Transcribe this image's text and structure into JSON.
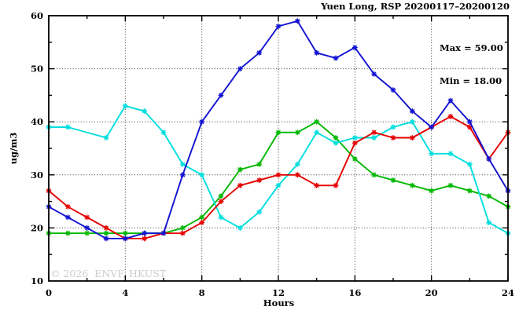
{
  "header": {
    "title": "Yuen Long, RSP 20200117–20200120"
  },
  "annotations": {
    "max": "Max = 59.00",
    "min": "Min = 18.00"
  },
  "watermark": "© 2026  ENVF, HKUST",
  "chart_data": {
    "type": "line",
    "title": "Yuen Long, RSP 20200117–20200120",
    "xlabel": "Hours",
    "ylabel": "ug/m3",
    "xlim": [
      0,
      24
    ],
    "ylim": [
      10,
      60
    ],
    "x_major_ticks": [
      0,
      4,
      8,
      12,
      16,
      20,
      24
    ],
    "x_minor_ticks": [
      2,
      6,
      10,
      14,
      18,
      22
    ],
    "y_major_ticks": [
      10,
      20,
      30,
      40,
      50,
      60
    ],
    "y_minor_ticks": [
      15,
      25,
      35,
      45,
      55
    ],
    "grid_x": [
      4,
      8,
      12,
      16,
      20
    ],
    "grid_y": [
      20,
      30,
      40,
      50
    ],
    "legend": "none",
    "marker": "asterisk",
    "max_value": 59.0,
    "min_value": 18.0,
    "x": [
      0,
      1,
      2,
      3,
      4,
      5,
      6,
      7,
      8,
      9,
      10,
      11,
      12,
      13,
      14,
      15,
      16,
      17,
      18,
      19,
      20,
      21,
      22,
      23,
      24
    ],
    "series": [
      {
        "name": "series-green",
        "color": "#00b800",
        "values": [
          19,
          19,
          19,
          19,
          19,
          19,
          19,
          20,
          22,
          26,
          31,
          32,
          38,
          38,
          40,
          37,
          33,
          30,
          29,
          28,
          27,
          28,
          27,
          26,
          24
        ]
      },
      {
        "name": "series-cyan",
        "color": "#00dede",
        "values": [
          39,
          39,
          null,
          37,
          43,
          42,
          38,
          32,
          30,
          22,
          20,
          23,
          28,
          32,
          38,
          36,
          37,
          37,
          39,
          40,
          34,
          34,
          32,
          21,
          19
        ]
      },
      {
        "name": "series-red",
        "color": "#e60000",
        "values": [
          27,
          24,
          22,
          20,
          18,
          18,
          19,
          19,
          21,
          25,
          28,
          29,
          30,
          30,
          28,
          28,
          36,
          38,
          37,
          37,
          39,
          41,
          39,
          33,
          38
        ]
      },
      {
        "name": "series-blue",
        "color": "#1212d2",
        "values": [
          24,
          22,
          20,
          18,
          18,
          19,
          19,
          30,
          40,
          45,
          50,
          53,
          58,
          59,
          53,
          52,
          54,
          49,
          46,
          42,
          39,
          44,
          40,
          33,
          27
        ]
      }
    ]
  }
}
